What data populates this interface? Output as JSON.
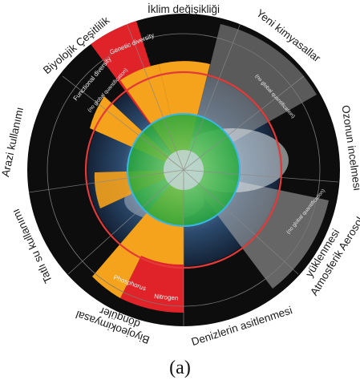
{
  "diagram": {
    "boundaries": [
      {
        "key": "climate",
        "label": "İklim değişikliği"
      },
      {
        "key": "chemicals",
        "label": "Yeni kimyasallar",
        "note": "(no global quantification)"
      },
      {
        "key": "ozone",
        "label": "Ozonun incelmesi"
      },
      {
        "key": "aerosol",
        "label_line1": "Atmosferik Aerosol",
        "label_line2": "yüklenmesi",
        "note": "(no global quantification)"
      },
      {
        "key": "ocean",
        "label": "Denizlerin asitlenmesi"
      },
      {
        "key": "biogeo",
        "label_line1": "Biyojeokimyasal",
        "label_line2": "döngüler",
        "sub_labels": [
          "Phosphorus",
          "Nitrogen"
        ]
      },
      {
        "key": "freshwater",
        "label": "Tatlı su kullanımı"
      },
      {
        "key": "land",
        "label": "Arazi kullanımı"
      },
      {
        "key": "biodiversity",
        "label": "Biyolojik Çeşitlilik",
        "sub_labels": [
          "Genetic diversity",
          "Functional diversity"
        ],
        "note": "(no global quantification)"
      }
    ],
    "status_colors": {
      "safe": "#22a83a",
      "increasing_risk": "#f5a21c",
      "high_risk": "#e02329",
      "unquantified": "#111111",
      "boundary_ring": "#e23a3a",
      "safe_ring": "#39b6e6"
    }
  },
  "caption": "(a)"
}
